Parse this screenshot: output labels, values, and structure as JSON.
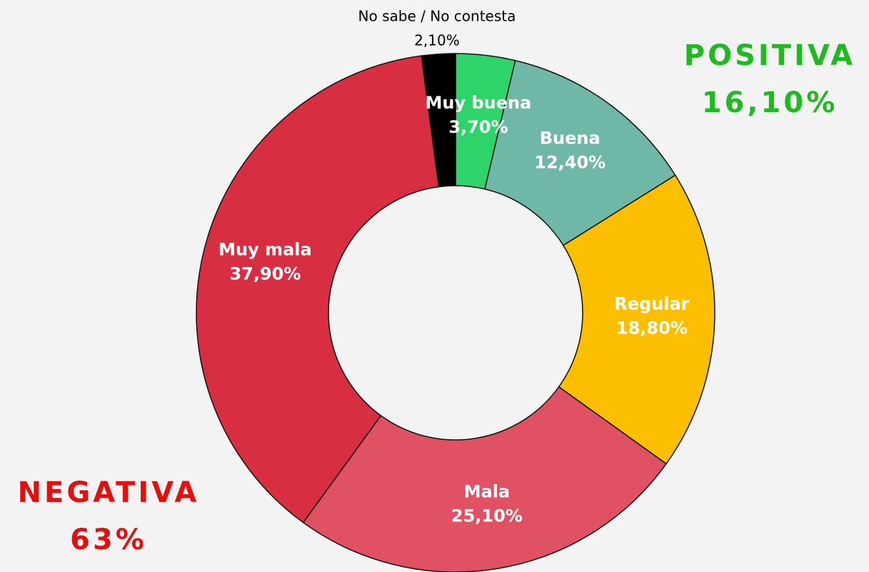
{
  "chart_data": {
    "type": "donut",
    "categories": [
      "Muy buena",
      "Buena",
      "Regular",
      "Mala",
      "Muy mala",
      "No sabe / No contesta"
    ],
    "values": [
      3.7,
      12.4,
      18.8,
      25.1,
      37.9,
      2.1
    ],
    "value_labels": [
      "3,70%",
      "12,40%",
      "18,80%",
      "25,10%",
      "37,90%",
      "2,10%"
    ],
    "colors": [
      "#2ed46a",
      "#6fb8a8",
      "#fcbf00",
      "#e05263",
      "#d72e42",
      "#000000"
    ],
    "annotations": [
      {
        "text": "POSITIVA",
        "value": "16,10%",
        "color": "#21b821"
      },
      {
        "text": "NEGATIVA",
        "value": "63%",
        "color": "#e31010"
      }
    ]
  }
}
